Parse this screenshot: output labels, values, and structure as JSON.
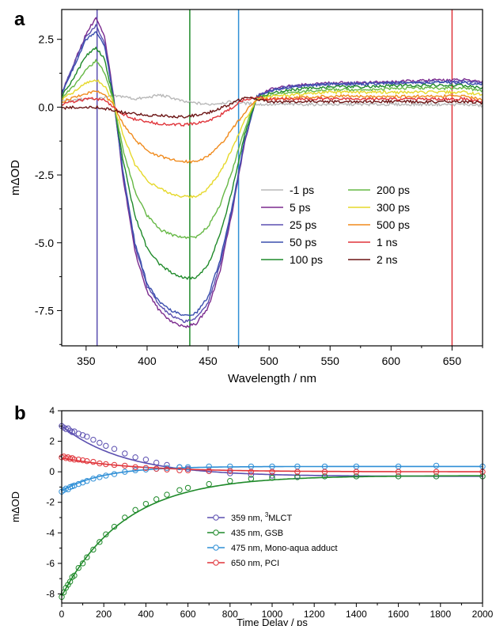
{
  "figure": {
    "panel_a_letter": "a",
    "panel_b_letter": "b"
  },
  "chart_data": [
    {
      "type": "line",
      "panel": "a",
      "xlabel": "Wavelength / nm",
      "ylabel": "mΔOD",
      "xlim": [
        330,
        675
      ],
      "ylim": [
        -8.8,
        3.6
      ],
      "xticks": [
        350,
        400,
        450,
        500,
        550,
        600,
        650
      ],
      "yticks": [
        2.5,
        0.0,
        -2.5,
        -5.0,
        -7.5
      ],
      "ytick_labels": [
        "2.5",
        "0.0",
        "-2.5",
        "-5.0",
        "-7.5"
      ],
      "grid": false,
      "legend_placement": "center-right",
      "markers": [
        {
          "x": 359,
          "color": "#5b4fb0"
        },
        {
          "x": 435,
          "color": "#1f8a2a"
        },
        {
          "x": 475,
          "color": "#2f8fd6"
        },
        {
          "x": 650,
          "color": "#e0343a"
        }
      ],
      "x": [
        330,
        340,
        350,
        358,
        365,
        372,
        380,
        390,
        400,
        410,
        420,
        430,
        440,
        450,
        460,
        470,
        480,
        490,
        500,
        520,
        550,
        580,
        610,
        640,
        660,
        675
      ],
      "series": [
        {
          "name": "-1 ps",
          "color": "#b8b8b8",
          "values": [
            0.25,
            0.25,
            0.3,
            0.3,
            0.35,
            0.4,
            0.4,
            0.3,
            0.35,
            0.45,
            0.35,
            0.2,
            0.15,
            0.1,
            0.15,
            0.2,
            0.15,
            0.1,
            0.1,
            0.1,
            0.1,
            0.1,
            0.1,
            0.1,
            0.1,
            0.05
          ]
        },
        {
          "name": "5 ps",
          "color": "#7b2a8e",
          "values": [
            0.5,
            1.6,
            2.7,
            3.3,
            2.6,
            0.6,
            -2.5,
            -5.3,
            -6.8,
            -7.5,
            -7.9,
            -8.1,
            -8.0,
            -7.4,
            -6.0,
            -3.8,
            -1.3,
            0.4,
            0.65,
            0.8,
            0.9,
            0.9,
            0.95,
            1.0,
            1.0,
            0.95
          ]
        },
        {
          "name": "25 ps",
          "color": "#5b4fb0",
          "values": [
            0.5,
            1.6,
            2.6,
            3.0,
            2.4,
            0.5,
            -2.4,
            -5.1,
            -6.6,
            -7.3,
            -7.7,
            -7.9,
            -7.8,
            -7.2,
            -5.8,
            -3.7,
            -1.2,
            0.4,
            0.6,
            0.8,
            0.85,
            0.9,
            0.9,
            0.95,
            0.95,
            0.9
          ]
        },
        {
          "name": "50 ps",
          "color": "#3a4fae",
          "values": [
            0.5,
            1.5,
            2.5,
            2.8,
            2.3,
            0.5,
            -2.3,
            -5.0,
            -6.5,
            -7.2,
            -7.5,
            -7.7,
            -7.6,
            -7.0,
            -5.6,
            -3.6,
            -1.2,
            0.4,
            0.6,
            0.75,
            0.85,
            0.85,
            0.9,
            0.9,
            0.9,
            0.85
          ]
        },
        {
          "name": "100 ps",
          "color": "#1f8a2a",
          "values": [
            0.4,
            1.1,
            1.9,
            2.2,
            1.8,
            0.4,
            -1.9,
            -4.0,
            -5.2,
            -5.8,
            -6.1,
            -6.3,
            -6.3,
            -5.8,
            -4.7,
            -3.0,
            -1.0,
            0.35,
            0.5,
            0.65,
            0.75,
            0.75,
            0.8,
            0.8,
            0.8,
            0.7
          ]
        },
        {
          "name": "200 ps",
          "color": "#66b845",
          "values": [
            0.35,
            0.8,
            1.4,
            1.7,
            1.3,
            0.3,
            -1.5,
            -3.1,
            -4.0,
            -4.5,
            -4.7,
            -4.8,
            -4.8,
            -4.4,
            -3.6,
            -2.3,
            -0.8,
            0.35,
            0.45,
            0.55,
            0.65,
            0.65,
            0.7,
            0.7,
            0.7,
            0.6
          ]
        },
        {
          "name": "300 ps",
          "color": "#e6d82a",
          "values": [
            0.3,
            0.55,
            0.9,
            1.0,
            0.8,
            0.2,
            -1.0,
            -2.1,
            -2.7,
            -3.0,
            -3.2,
            -3.3,
            -3.3,
            -3.0,
            -2.4,
            -1.5,
            -0.5,
            0.3,
            0.4,
            0.45,
            0.55,
            0.55,
            0.55,
            0.55,
            0.55,
            0.45
          ]
        },
        {
          "name": "500 ps",
          "color": "#f08a1c",
          "values": [
            0.2,
            0.35,
            0.5,
            0.6,
            0.45,
            0.1,
            -0.6,
            -1.2,
            -1.6,
            -1.8,
            -1.95,
            -2.0,
            -2.0,
            -1.8,
            -1.4,
            -0.8,
            -0.2,
            0.3,
            0.3,
            0.35,
            0.4,
            0.4,
            0.4,
            0.4,
            0.4,
            0.3
          ]
        },
        {
          "name": "1 ns",
          "color": "#e0343a",
          "values": [
            0.1,
            0.2,
            0.3,
            0.3,
            0.25,
            0.0,
            -0.25,
            -0.45,
            -0.55,
            -0.6,
            -0.65,
            -0.65,
            -0.6,
            -0.5,
            -0.3,
            0.0,
            0.3,
            0.35,
            0.3,
            0.3,
            0.3,
            0.3,
            0.3,
            0.3,
            0.3,
            0.2
          ]
        },
        {
          "name": "2 ns",
          "color": "#6b1414",
          "values": [
            -0.05,
            0.0,
            0.0,
            0.0,
            -0.05,
            -0.1,
            -0.2,
            -0.25,
            -0.3,
            -0.3,
            -0.35,
            -0.35,
            -0.3,
            -0.2,
            -0.05,
            0.15,
            0.35,
            0.3,
            0.2,
            0.2,
            0.2,
            0.2,
            0.2,
            0.2,
            0.2,
            0.15
          ]
        }
      ]
    },
    {
      "type": "scatter",
      "panel": "b",
      "xlabel": "Time Delay / ps",
      "ylabel": "mΔOD",
      "xlim": [
        0,
        2000
      ],
      "ylim": [
        -8.6,
        4
      ],
      "xticks": [
        0,
        200,
        400,
        600,
        800,
        1000,
        1200,
        1400,
        1600,
        1800,
        2000
      ],
      "yticks": [
        4,
        2,
        0,
        -2,
        -4,
        -6,
        -8
      ],
      "grid": false,
      "legend_placement": "center-right",
      "series": [
        {
          "name": "359 nm, ³MLCT",
          "name_main": "359 nm, ",
          "name_sup": "3",
          "name_tail": "MLCT",
          "color": "#5b4fb0",
          "fit": {
            "A": 3.3,
            "tau": 300,
            "C": -0.3
          },
          "x": [
            0,
            10,
            20,
            30,
            40,
            50,
            60,
            80,
            100,
            120,
            150,
            180,
            210,
            250,
            300,
            350,
            400,
            450,
            500,
            560,
            600,
            700,
            800,
            900,
            1000,
            1120,
            1250,
            1400,
            1600,
            1780,
            2000
          ],
          "values": [
            3.0,
            2.9,
            2.8,
            2.85,
            2.7,
            2.6,
            2.65,
            2.5,
            2.4,
            2.3,
            2.1,
            1.9,
            1.7,
            1.5,
            1.2,
            0.95,
            0.8,
            0.6,
            0.45,
            0.3,
            0.2,
            0.05,
            -0.1,
            -0.2,
            -0.25,
            -0.3,
            -0.3,
            -0.3,
            -0.3,
            -0.3,
            -0.3
          ]
        },
        {
          "name": "435 nm, GSB",
          "name_main": "435 nm, GSB",
          "name_sup": "",
          "name_tail": "",
          "color": "#1f8a2a",
          "fit": {
            "A": -7.9,
            "tau": 300,
            "C": -0.25
          },
          "x": [
            0,
            10,
            20,
            30,
            40,
            50,
            60,
            80,
            100,
            120,
            150,
            180,
            210,
            250,
            300,
            350,
            400,
            450,
            500,
            560,
            600,
            700,
            800,
            900,
            1000,
            1120,
            1250,
            1400,
            1600,
            1780,
            2000
          ],
          "values": [
            -8.2,
            -7.9,
            -7.6,
            -7.4,
            -7.2,
            -6.9,
            -6.8,
            -6.3,
            -6.0,
            -5.6,
            -5.1,
            -4.6,
            -4.1,
            -3.6,
            -3.0,
            -2.5,
            -2.1,
            -1.8,
            -1.5,
            -1.2,
            -1.05,
            -0.8,
            -0.6,
            -0.45,
            -0.4,
            -0.35,
            -0.3,
            -0.3,
            -0.3,
            -0.3,
            -0.3
          ]
        },
        {
          "name": "475 nm, Mono-aqua adduct",
          "name_main": "475 nm, Mono-aqua adduct",
          "name_sup": "",
          "name_tail": "",
          "color": "#2f8fd6",
          "fit": {
            "A": -1.6,
            "tau": 200,
            "C": 0.35
          },
          "x": [
            0,
            10,
            20,
            30,
            40,
            50,
            60,
            80,
            100,
            120,
            150,
            180,
            210,
            250,
            300,
            350,
            400,
            450,
            500,
            560,
            600,
            700,
            800,
            900,
            1000,
            1120,
            1250,
            1400,
            1600,
            1780,
            2000
          ],
          "values": [
            -1.3,
            -1.2,
            -1.1,
            -1.15,
            -1.0,
            -0.95,
            -0.9,
            -0.8,
            -0.7,
            -0.6,
            -0.45,
            -0.35,
            -0.25,
            -0.15,
            0.0,
            0.1,
            0.15,
            0.2,
            0.25,
            0.3,
            0.3,
            0.35,
            0.35,
            0.35,
            0.35,
            0.35,
            0.35,
            0.35,
            0.35,
            0.4,
            0.35
          ]
        },
        {
          "name": "650 nm, PCI",
          "name_main": "650 nm, PCI",
          "name_sup": "",
          "name_tail": "",
          "color": "#e0343a",
          "fit": {
            "A": 0.9,
            "tau": 350,
            "C": 0.0
          },
          "x": [
            0,
            10,
            20,
            30,
            40,
            50,
            60,
            80,
            100,
            120,
            150,
            180,
            210,
            250,
            300,
            350,
            400,
            450,
            500,
            560,
            600,
            700,
            800,
            900,
            1000,
            1120,
            1250,
            1400,
            1600,
            1780,
            2000
          ],
          "values": [
            0.95,
            1.0,
            0.9,
            0.95,
            0.85,
            0.9,
            0.8,
            0.8,
            0.75,
            0.7,
            0.65,
            0.55,
            0.5,
            0.45,
            0.4,
            0.3,
            0.25,
            0.2,
            0.15,
            0.1,
            0.1,
            0.05,
            0.05,
            0.0,
            0.0,
            0.0,
            0.0,
            0.0,
            0.0,
            0.0,
            0.0
          ]
        }
      ]
    }
  ]
}
